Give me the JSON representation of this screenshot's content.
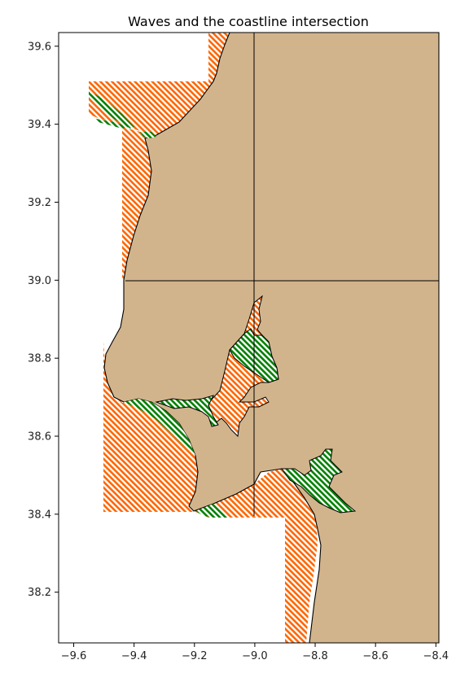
{
  "title": "Waves and the coastline intersection",
  "x_axis": {
    "range": [
      -9.65,
      -8.39
    ],
    "ticks": [
      -9.6,
      -9.4,
      -9.2,
      -9.0,
      -8.8,
      -8.6,
      -8.4
    ],
    "tick_labels": [
      "−9.6",
      "−9.4",
      "−9.2",
      "−9.0",
      "−8.8",
      "−8.6",
      "−8.4"
    ]
  },
  "y_axis": {
    "range": [
      38.07,
      39.635
    ],
    "ticks": [
      38.2,
      38.4,
      38.6,
      38.8,
      39.0,
      39.2,
      39.4,
      39.6
    ],
    "tick_labels": [
      "38.2",
      "38.4",
      "38.6",
      "38.8",
      "39.0",
      "39.2",
      "39.4",
      "39.6"
    ]
  },
  "colors": {
    "land": "#d2b48c",
    "wave_hatch": "#ff6600",
    "intersection_hatch": "#008000",
    "grid_lines": "#000000"
  },
  "grid_lines": {
    "lon": [
      -9.0
    ],
    "lat": [
      39.0
    ]
  },
  "layers": [
    {
      "name": "land",
      "style": "solid fill"
    },
    {
      "name": "wave zones",
      "style": "orange diagonal hatch"
    },
    {
      "name": "wave / coastline intersection",
      "style": "green diagonal hatch"
    }
  ],
  "wave_zones": [
    {
      "lon": [
        -9.55,
        -9.15
      ],
      "lat": [
        39.395,
        39.51
      ]
    },
    {
      "lon": [
        -9.15,
        -9.13
      ],
      "lat": [
        39.51,
        39.635
      ]
    },
    {
      "lon": [
        -9.43,
        -9.38
      ],
      "lat": [
        39.0,
        39.395
      ]
    },
    {
      "lon": [
        -9.5,
        -9.43
      ],
      "lat": [
        38.85,
        39.0
      ]
    },
    {
      "lon": [
        -9.5,
        -9.2
      ],
      "lat": [
        38.41,
        38.85
      ]
    },
    {
      "lon": [
        -9.13,
        -9.02
      ],
      "lat": [
        38.68,
        38.94
      ]
    },
    {
      "lon": [
        -9.15,
        -8.79
      ],
      "lat": [
        38.39,
        38.5
      ]
    },
    {
      "lon": [
        -8.89,
        -8.79
      ],
      "lat": [
        38.07,
        38.39
      ]
    }
  ]
}
